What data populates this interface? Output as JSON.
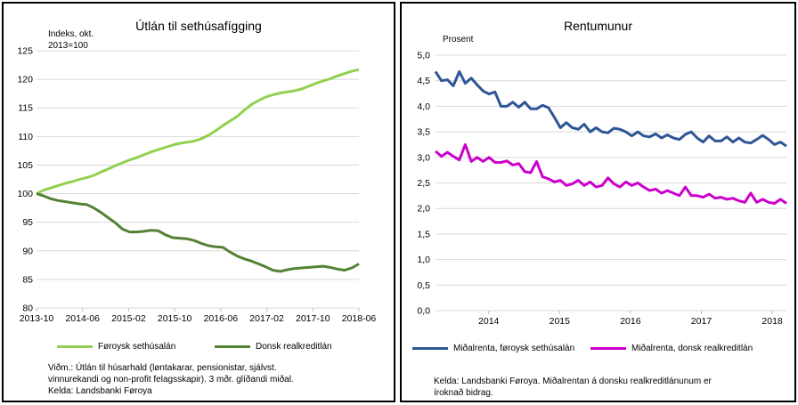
{
  "chart_data": [
    {
      "type": "line",
      "title": "Útlán til sethúsafígging",
      "ylabel_line1": "Indeks, okt.",
      "ylabel_line2": "2013=100",
      "ylim": [
        80,
        125
      ],
      "yticks": [
        80,
        85,
        90,
        95,
        100,
        105,
        110,
        115,
        120,
        125
      ],
      "x_tick_labels": [
        "2013-10",
        "2014-06",
        "2015-02",
        "2015-10",
        "2016-06",
        "2017-02",
        "2017-10",
        "2018-06"
      ],
      "grid": true,
      "legend": "bottom",
      "series": [
        {
          "name": "Føroysk sethúsalán",
          "color": "#92d050",
          "values": [
            100,
            100.6,
            101,
            101.4,
            101.8,
            102.1,
            102.5,
            102.8,
            103.2,
            103.8,
            104.3,
            104.9,
            105.4,
            105.9,
            106.3,
            106.8,
            107.3,
            107.7,
            108.1,
            108.5,
            108.8,
            109,
            109.2,
            109.6,
            110.2,
            111,
            111.9,
            112.7,
            113.5,
            114.6,
            115.6,
            116.3,
            116.9,
            117.3,
            117.6,
            117.8,
            118,
            118.3,
            118.8,
            119.3,
            119.7,
            120.1,
            120.6,
            121,
            121.4,
            121.7
          ]
        },
        {
          "name": "Donsk realkreditlán",
          "color": "#548235",
          "values": [
            100,
            99.6,
            99.1,
            98.8,
            98.6,
            98.4,
            98.2,
            98.1,
            97.5,
            96.7,
            95.8,
            94.9,
            93.8,
            93.3,
            93.3,
            93.4,
            93.6,
            93.5,
            92.8,
            92.3,
            92.2,
            92.1,
            91.8,
            91.3,
            90.9,
            90.7,
            90.6,
            89.8,
            89.1,
            88.6,
            88.2,
            87.7,
            87.2,
            86.6,
            86.4,
            86.7,
            86.9,
            87,
            87.1,
            87.2,
            87.3,
            87.1,
            86.8,
            86.6,
            87,
            87.7
          ]
        }
      ],
      "note_line1": "Viðm.: Útlán til húsarhald (løntakarar, pensionistar, sjálvst.",
      "note_line2": "vinnurekandi og non-profit felagsskapir). 3 mðr. glíðandi miðal.",
      "note_line3": "Kelda: Landsbanki Føroya"
    },
    {
      "type": "line",
      "title": "Rentumunur",
      "ylabel": "Prosent",
      "ylim": [
        0,
        5
      ],
      "yticks": [
        "0,0",
        "0,5",
        "1,0",
        "1,5",
        "2,0",
        "2,5",
        "3,0",
        "3,5",
        "4,0",
        "4,5",
        "5,0"
      ],
      "x_tick_labels": [
        "2014",
        "2015",
        "2016",
        "2017",
        "2018"
      ],
      "x_start": 2013.25,
      "x_end": 2018.2,
      "grid": true,
      "legend": "bottom",
      "series": [
        {
          "name": "Miðalrenta, føroysk sethúsalán",
          "color": "#2e5597",
          "values": [
            4.68,
            4.5,
            4.52,
            4.4,
            4.68,
            4.45,
            4.55,
            4.42,
            4.3,
            4.24,
            4.28,
            4.0,
            4.0,
            4.08,
            3.98,
            4.08,
            3.95,
            3.95,
            4.02,
            3.97,
            3.78,
            3.58,
            3.68,
            3.58,
            3.55,
            3.65,
            3.5,
            3.58,
            3.5,
            3.48,
            3.57,
            3.55,
            3.5,
            3.42,
            3.5,
            3.42,
            3.4,
            3.46,
            3.38,
            3.44,
            3.38,
            3.35,
            3.45,
            3.5,
            3.38,
            3.3,
            3.42,
            3.32,
            3.32,
            3.4,
            3.3,
            3.38,
            3.3,
            3.28,
            3.35,
            3.43,
            3.35,
            3.25,
            3.3,
            3.22
          ]
        },
        {
          "name": "Miðalrenta, donsk realkreditlán",
          "color": "#cc00cc",
          "values": [
            3.12,
            3.02,
            3.1,
            3.02,
            2.95,
            3.25,
            2.92,
            3.0,
            2.92,
            3.0,
            2.9,
            2.9,
            2.93,
            2.85,
            2.88,
            2.72,
            2.7,
            2.92,
            2.62,
            2.58,
            2.52,
            2.55,
            2.45,
            2.48,
            2.55,
            2.45,
            2.52,
            2.42,
            2.45,
            2.6,
            2.48,
            2.42,
            2.52,
            2.45,
            2.5,
            2.42,
            2.35,
            2.38,
            2.3,
            2.35,
            2.3,
            2.25,
            2.42,
            2.25,
            2.25,
            2.22,
            2.28,
            2.2,
            2.22,
            2.18,
            2.2,
            2.15,
            2.12,
            2.3,
            2.12,
            2.18,
            2.12,
            2.1,
            2.18,
            2.1
          ]
        }
      ],
      "note_line1": "Kelda: Landsbanki Føroya. Miðalrentan á donsku realkreditlánunum er",
      "note_line2": "íroknað bidrag."
    }
  ]
}
